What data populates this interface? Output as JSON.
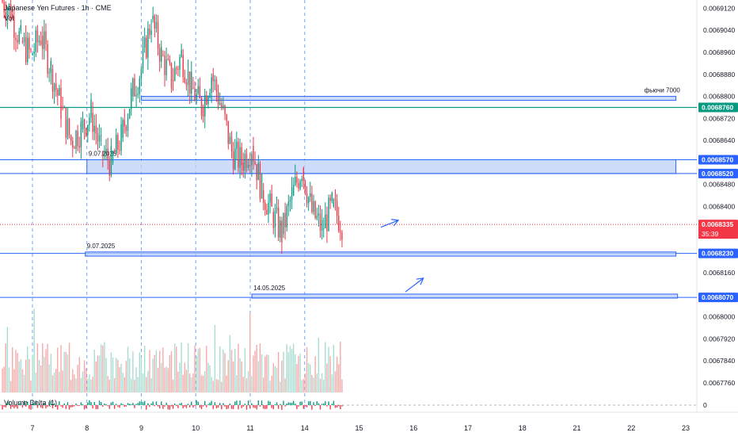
{
  "header": {
    "title": "Japanese Yen Futures · 1h · CME",
    "volume_label": "Vol",
    "delta_label": "Volume Delta (1)"
  },
  "chart_data": {
    "type": "candlestick",
    "symbol": "Japanese Yen Futures",
    "interval": "1h",
    "exchange": "CME",
    "price_range": [
      0.0067725,
      0.006915
    ],
    "y_ticks": [
      "0.0069120",
      "0.0069040",
      "0.0068960",
      "0.0068880",
      "0.0068800",
      "0.0068720",
      "0.0068640",
      "0.0068480",
      "0.0068400",
      "0.0068160",
      "0.0068000",
      "0.0067920",
      "0.0067840",
      "0.0067760"
    ],
    "x_ticks": [
      {
        "label": "7",
        "pos": 0
      },
      {
        "label": "8",
        "pos": 1
      },
      {
        "label": "9",
        "pos": 2
      },
      {
        "label": "10",
        "pos": 3
      },
      {
        "label": "11",
        "pos": 4
      },
      {
        "label": "14",
        "pos": 5
      },
      {
        "label": "15",
        "pos": 6
      },
      {
        "label": "16",
        "pos": 7
      },
      {
        "label": "17",
        "pos": 8
      },
      {
        "label": "18",
        "pos": 9
      },
      {
        "label": "21",
        "pos": 10
      },
      {
        "label": "22",
        "pos": 11
      },
      {
        "label": "23",
        "pos": 12
      }
    ],
    "session_breaks": [
      0,
      1,
      2,
      3,
      4,
      5
    ],
    "price_labels": [
      {
        "value": 0.006876,
        "text": "0.0068760",
        "color": "#089981"
      },
      {
        "value": 0.006857,
        "text": "0.0068570",
        "color": "#2962ff"
      },
      {
        "value": 0.006852,
        "text": "0.0068520",
        "color": "#2962ff"
      },
      {
        "value": 0.0068335,
        "text": "0.0068335",
        "color": "#f23645",
        "sub": "35:39"
      },
      {
        "value": 0.006823,
        "text": "0.0068230",
        "color": "#2962ff"
      },
      {
        "value": 0.006807,
        "text": "0.0068070",
        "color": "#2962ff"
      }
    ],
    "horizontal_lines": [
      {
        "value": 0.006876,
        "color": "#089981"
      },
      {
        "value": 0.006857,
        "color": "#2962ff"
      },
      {
        "value": 0.006852,
        "color": "#2962ff"
      },
      {
        "value": 0.006823,
        "color": "#2962ff"
      },
      {
        "value": 0.006807,
        "color": "#2962ff"
      }
    ],
    "zones": [
      {
        "from": 2.0,
        "to": 11.82,
        "top": 0.00688,
        "bottom": 0.0068793,
        "label": "фьючи 7000"
      },
      {
        "from": 1.0,
        "to": 11.82,
        "top": 0.006857,
        "bottom": 0.006852,
        "label": "9.07.2025"
      },
      {
        "from": 0.97,
        "to": 11.82,
        "top": 0.0068235,
        "bottom": 0.006822,
        "label": "9.07.2025"
      },
      {
        "from": 4.03,
        "to": 11.85,
        "top": 0.0068082,
        "bottom": 0.0068073,
        "label": "14.05.2025"
      }
    ],
    "arrows": [
      {
        "x1": 6.4,
        "y1": 0.0068325,
        "x2": 6.72,
        "y2": 0.006835
      },
      {
        "x1": 6.85,
        "y1": 0.006809,
        "x2": 7.18,
        "y2": 0.006814
      }
    ],
    "volume_delta_zero_label": "0",
    "current_price": 0.0068335,
    "colors": {
      "up": "#089981",
      "down": "#f23645",
      "vol_up": "#a7dcd1",
      "vol_down": "#f7a9a7",
      "zone_fill": "#bbd0f7",
      "grid": "#f0f3fa"
    }
  }
}
